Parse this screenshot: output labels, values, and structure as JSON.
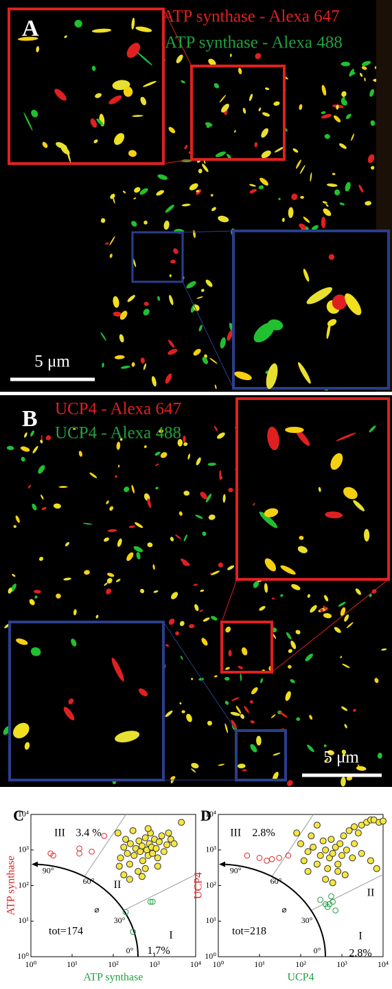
{
  "images": [
    {
      "label": "A",
      "legend": [
        "ATP synthase - Alexa 647",
        "ATP synthase - Alexa 488"
      ],
      "scale_bar": "5 μm"
    },
    {
      "label": "B",
      "legend": [
        "UCP4 - Alexa 647",
        "UCP4 - Alexa 488"
      ],
      "scale_bar": "5 μm"
    }
  ],
  "chart_data": [
    {
      "type": "scatter",
      "panel_label": "C",
      "xlabel": "ATP synthase",
      "ylabel": "ATP synthase",
      "log_x": true,
      "log_y": true,
      "xlim": [
        1,
        10000
      ],
      "ylim": [
        1,
        10000
      ],
      "xticks": [
        {
          "value": 1,
          "label": "10⁰"
        },
        {
          "value": 10,
          "label": "10¹"
        },
        {
          "value": 100,
          "label": "10²"
        },
        {
          "value": 1000,
          "label": "10³"
        },
        {
          "value": 10000,
          "label": "10⁴"
        }
      ],
      "yticks": [
        {
          "value": 1,
          "label": "10⁰"
        },
        {
          "value": 10,
          "label": "10¹"
        },
        {
          "value": 100,
          "label": "10²"
        },
        {
          "value": 1000,
          "label": "10³"
        },
        {
          "value": 10000,
          "label": "10⁴"
        }
      ],
      "annotations": [
        "III",
        "3.4 %",
        "II",
        "I",
        "1.7%",
        "tot=174",
        "90°",
        "60°",
        "30°",
        "0°",
        "⌀"
      ],
      "series": [
        {
          "color": "#e02020",
          "filled": false,
          "x": [
            3,
            3.5,
            15,
            15,
            30,
            60
          ],
          "values": [
            800,
            700,
            1100,
            800,
            900,
            2500
          ]
        },
        {
          "color": "#f5e642",
          "filled": true,
          "x": [
            130,
            150,
            180,
            200,
            220,
            250,
            260,
            300,
            320,
            350,
            400,
            420,
            450,
            500,
            520,
            600,
            650,
            700,
            750,
            800,
            850,
            900,
            1000,
            1100,
            1200,
            1300,
            1500,
            1700,
            2000,
            2200,
            2500,
            3000,
            4500,
            180,
            250,
            600,
            500,
            1200,
            140,
            700
          ],
          "values": [
            3000,
            600,
            1200,
            2000,
            800,
            400,
            1500,
            3500,
            700,
            1100,
            250,
            1800,
            900,
            1300,
            500,
            2200,
            1000,
            700,
            1500,
            3000,
            1200,
            800,
            2000,
            1100,
            600,
            1700,
            2500,
            900,
            1400,
            3000,
            2000,
            1500,
            6000,
            200,
            150,
            300,
            180,
            350,
            350,
            4000
          ]
        },
        {
          "color": "#20a040",
          "filled": false,
          "x": [
            800,
            900,
            200,
            300
          ],
          "values": [
            35,
            35,
            18,
            5
          ]
        }
      ]
    },
    {
      "type": "scatter",
      "panel_label": "D",
      "xlabel": "UCP4",
      "ylabel": "UCP4",
      "log_x": true,
      "log_y": true,
      "xlim": [
        1,
        10000
      ],
      "ylim": [
        1,
        10000
      ],
      "xticks": [
        {
          "value": 1,
          "label": "10⁰"
        },
        {
          "value": 10,
          "label": "10¹"
        },
        {
          "value": 100,
          "label": "10²"
        },
        {
          "value": 1000,
          "label": "10³"
        },
        {
          "value": 10000,
          "label": "10⁴"
        }
      ],
      "yticks": [
        {
          "value": 1,
          "label": "10⁰"
        },
        {
          "value": 10,
          "label": "10¹"
        },
        {
          "value": 100,
          "label": "10²"
        },
        {
          "value": 1000,
          "label": "10³"
        },
        {
          "value": 10000,
          "label": "10⁴"
        }
      ],
      "annotations": [
        "III",
        "2.8%",
        "II",
        "I",
        "2.8%",
        "tot=218",
        "90°",
        "60°",
        "30°",
        "0°",
        "⌀"
      ],
      "series": [
        {
          "color": "#e02020",
          "filled": false,
          "x": [
            5,
            10,
            15,
            20,
            30,
            50
          ],
          "values": [
            700,
            600,
            500,
            550,
            600,
            700
          ]
        },
        {
          "color": "#f5e642",
          "filled": true,
          "x": [
            80,
            100,
            120,
            150,
            180,
            200,
            250,
            300,
            350,
            400,
            450,
            500,
            550,
            600,
            700,
            800,
            900,
            1000,
            1100,
            1300,
            1500,
            1800,
            2000,
            2500,
            3000,
            4000,
            5000,
            6000,
            8000,
            3000,
            5000,
            7000,
            2000,
            400,
            600,
            800,
            250,
            150,
            1200,
            10000
          ],
          "values": [
            3000,
            1500,
            500,
            900,
            2500,
            1200,
            400,
            700,
            1800,
            1000,
            300,
            600,
            2000,
            800,
            1200,
            400,
            1500,
            700,
            2500,
            1000,
            3500,
            600,
            4500,
            3000,
            5000,
            6000,
            7000,
            7000,
            6000,
            800,
            500,
            300,
            1500,
            150,
            120,
            250,
            5000,
            250,
            200,
            6500
          ]
        },
        {
          "color": "#20a040",
          "filled": false,
          "x": [
            300,
            400,
            500,
            600,
            700,
            450,
            550
          ],
          "values": [
            40,
            30,
            30,
            35,
            20,
            25,
            50
          ]
        }
      ]
    }
  ]
}
